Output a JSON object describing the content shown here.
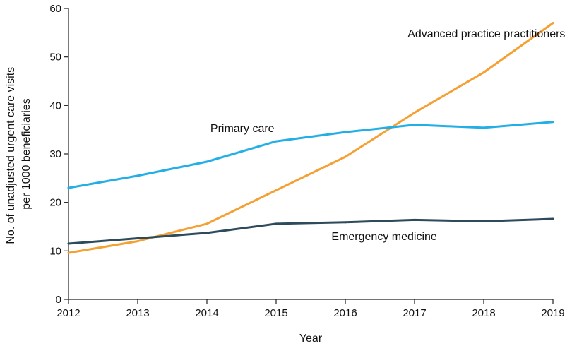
{
  "chart_data": {
    "type": "line",
    "title": "",
    "xlabel": "Year",
    "ylabel_lines": [
      "No. of unadjusted urgent care visits",
      "per 1000 beneficiaries"
    ],
    "x": [
      2012,
      2013,
      2014,
      2015,
      2016,
      2017,
      2018,
      2019
    ],
    "x_tick_labels": [
      "2012",
      "2013",
      "2014",
      "2015",
      "2016",
      "2017",
      "2018",
      "2019"
    ],
    "ylim": [
      0,
      60
    ],
    "y_ticks": [
      0,
      10,
      20,
      30,
      40,
      50,
      60
    ],
    "y_tick_labels": [
      "0",
      "10",
      "20",
      "30",
      "40",
      "50",
      "60"
    ],
    "grid": false,
    "legend": "none",
    "series": [
      {
        "name": "Advanced practice practitioners",
        "color": "#F5A033",
        "values": [
          9.6,
          12.0,
          15.6,
          22.5,
          29.4,
          38.5,
          46.8,
          57.0
        ],
        "label_anchor": {
          "x": 2016.9,
          "y": 54
        }
      },
      {
        "name": "Primary care",
        "color": "#23AEE5",
        "values": [
          23.0,
          25.5,
          28.4,
          32.6,
          34.5,
          36.0,
          35.4,
          36.6
        ],
        "label_anchor": {
          "x": 2014.05,
          "y": 34.5
        }
      },
      {
        "name": "Emergency medicine",
        "color": "#2D4B5A",
        "values": [
          11.5,
          12.6,
          13.7,
          15.6,
          15.9,
          16.4,
          16.1,
          16.6
        ],
        "label_anchor": {
          "x": 2015.8,
          "y": 12.2
        }
      }
    ]
  }
}
